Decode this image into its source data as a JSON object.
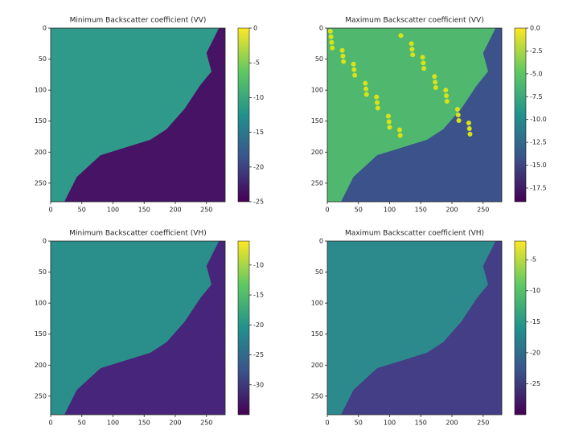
{
  "chart_data": [
    {
      "type": "heatmap",
      "title": "Minimum Backscatter coefficient (VV)",
      "colormap": "viridis",
      "xlim": [
        0,
        280
      ],
      "ylim": [
        280,
        0
      ],
      "xticks": [
        0,
        50,
        100,
        150,
        200,
        250
      ],
      "yticks": [
        0,
        50,
        100,
        150,
        200,
        250
      ],
      "clim": [
        -25,
        0
      ],
      "cticks": [
        0,
        -5,
        -10,
        -15,
        -20,
        -25
      ]
    },
    {
      "type": "heatmap",
      "title": "Maximum Backscatter coefficient (VV)",
      "colormap": "viridis",
      "xlim": [
        0,
        280
      ],
      "ylim": [
        280,
        0
      ],
      "xticks": [
        0,
        50,
        100,
        150,
        200,
        250
      ],
      "yticks": [
        0,
        50,
        100,
        150,
        200,
        250
      ],
      "clim": [
        -19,
        0
      ],
      "cticks": [
        {
          "value": 0,
          "label": "0.0"
        },
        -2.5,
        {
          "value": -5,
          "label": "-5.0"
        },
        -7.5,
        {
          "value": -10,
          "label": "-10.0"
        },
        -12.5,
        {
          "value": -15,
          "label": "-15.0"
        },
        -17.5
      ]
    },
    {
      "type": "heatmap",
      "title": "Minimum Backscatter coefficient (VH)",
      "colormap": "viridis",
      "xlim": [
        0,
        280
      ],
      "ylim": [
        280,
        0
      ],
      "xticks": [
        0,
        50,
        100,
        150,
        200,
        250
      ],
      "yticks": [
        0,
        50,
        100,
        150,
        200,
        250
      ],
      "clim": [
        -35,
        -6
      ],
      "cticks": [
        -10,
        -15,
        -20,
        -25,
        -30
      ]
    },
    {
      "type": "heatmap",
      "title": "Maximum Backscatter coefficient (VH)",
      "colormap": "viridis",
      "xlim": [
        0,
        280
      ],
      "ylim": [
        280,
        0
      ],
      "xticks": [
        0,
        50,
        100,
        150,
        200,
        250
      ],
      "yticks": [
        0,
        50,
        100,
        150,
        200,
        250
      ],
      "clim": [
        -30,
        -2
      ],
      "cticks": [
        -5,
        -10,
        -15,
        -20,
        -25
      ]
    }
  ]
}
